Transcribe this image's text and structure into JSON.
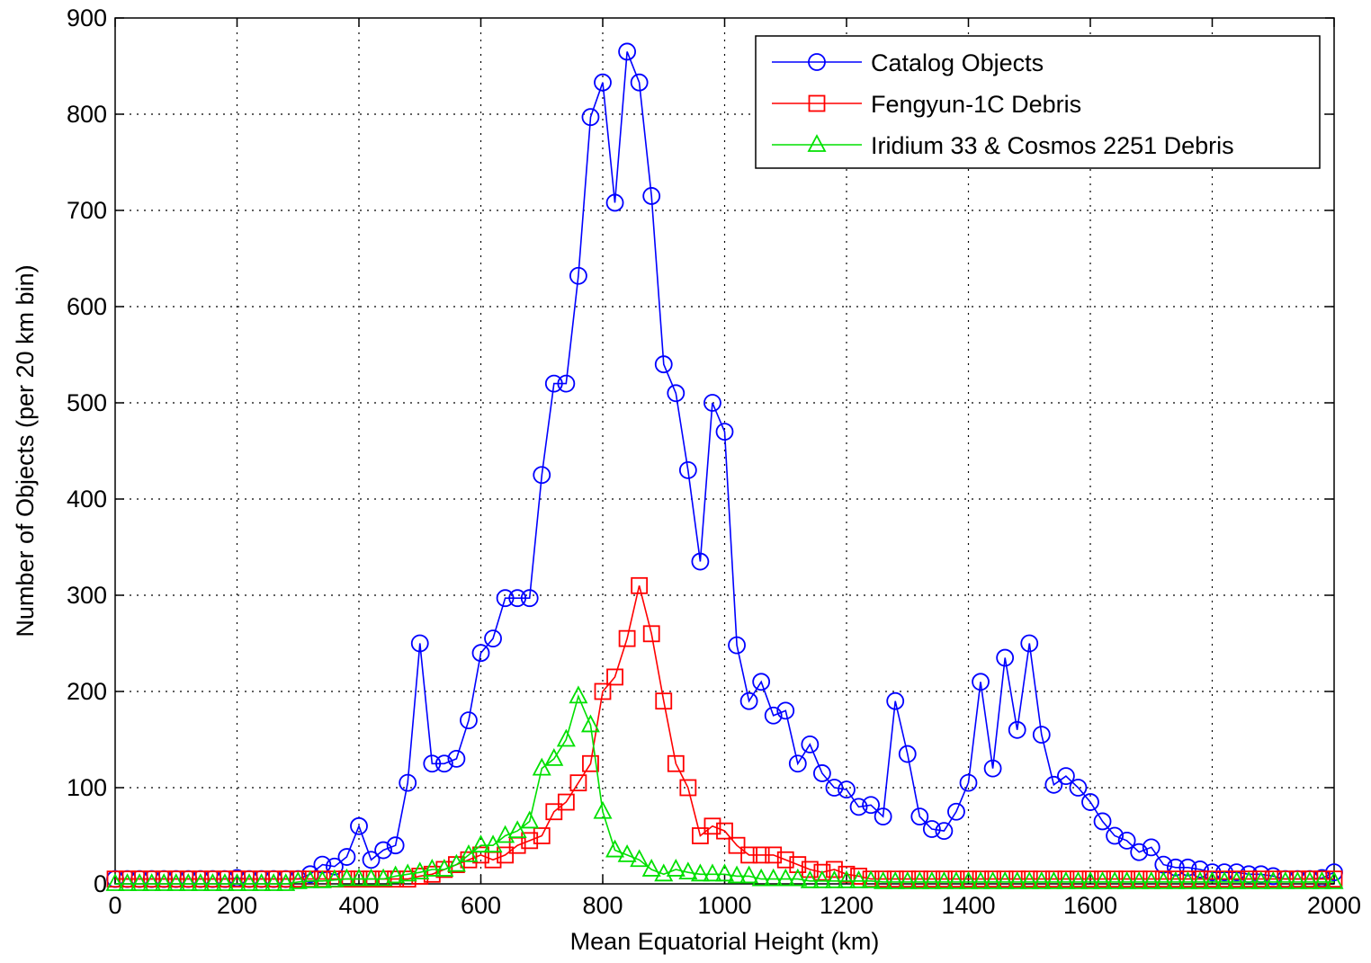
{
  "chart_data": {
    "type": "line",
    "title": "",
    "xlabel": "Mean Equatorial Height (km)",
    "ylabel": "Number of Objects (per 20 km bin)",
    "xlim": [
      0,
      2000
    ],
    "ylim": [
      0,
      900
    ],
    "xticks": [
      0,
      200,
      400,
      600,
      800,
      1000,
      1200,
      1400,
      1600,
      1800,
      2000
    ],
    "yticks": [
      0,
      100,
      200,
      300,
      400,
      500,
      600,
      700,
      800,
      900
    ],
    "grid": true,
    "grid_style": "dotted",
    "legend_position": "top-right",
    "series": [
      {
        "name": "Catalog Objects",
        "color": "#0000ff",
        "marker": "circle",
        "x": [
          0,
          20,
          40,
          60,
          80,
          100,
          120,
          140,
          160,
          180,
          200,
          220,
          240,
          260,
          280,
          300,
          320,
          340,
          360,
          380,
          400,
          420,
          440,
          460,
          480,
          500,
          520,
          540,
          560,
          580,
          600,
          620,
          640,
          660,
          680,
          700,
          720,
          740,
          760,
          780,
          800,
          820,
          840,
          860,
          880,
          900,
          920,
          940,
          960,
          980,
          1000,
          1020,
          1040,
          1060,
          1080,
          1100,
          1120,
          1140,
          1160,
          1180,
          1200,
          1220,
          1240,
          1260,
          1280,
          1300,
          1320,
          1340,
          1360,
          1380,
          1400,
          1420,
          1440,
          1460,
          1480,
          1500,
          1520,
          1540,
          1560,
          1580,
          1600,
          1620,
          1640,
          1660,
          1680,
          1700,
          1720,
          1740,
          1760,
          1780,
          1800,
          1820,
          1840,
          1860,
          1880,
          1900,
          1920,
          1940,
          1960,
          1980,
          2000
        ],
        "y": [
          5,
          5,
          5,
          5,
          5,
          5,
          5,
          5,
          5,
          5,
          6,
          5,
          5,
          5,
          5,
          5,
          10,
          20,
          18,
          28,
          60,
          25,
          35,
          40,
          105,
          250,
          125,
          125,
          130,
          170,
          240,
          255,
          297,
          297,
          297,
          425,
          520,
          520,
          632,
          797,
          833,
          708,
          865,
          833,
          715,
          540,
          510,
          430,
          335,
          500,
          470,
          248,
          190,
          210,
          175,
          180,
          125,
          145,
          115,
          100,
          98,
          80,
          82,
          70,
          190,
          135,
          70,
          57,
          55,
          75,
          105,
          210,
          120,
          235,
          160,
          250,
          155,
          103,
          112,
          100,
          85,
          65,
          50,
          45,
          33,
          38,
          20,
          17,
          17,
          15,
          12,
          12,
          12,
          10,
          10,
          8,
          5,
          5,
          5,
          6,
          12
        ]
      },
      {
        "name": "Fengyun-1C Debris",
        "color": "#ff0000",
        "marker": "square",
        "x": [
          0,
          20,
          40,
          60,
          80,
          100,
          120,
          140,
          160,
          180,
          200,
          220,
          240,
          260,
          280,
          300,
          320,
          340,
          360,
          380,
          400,
          420,
          440,
          460,
          480,
          500,
          520,
          540,
          560,
          580,
          600,
          620,
          640,
          660,
          680,
          700,
          720,
          740,
          760,
          780,
          800,
          820,
          840,
          860,
          880,
          900,
          920,
          940,
          960,
          980,
          1000,
          1020,
          1040,
          1060,
          1080,
          1100,
          1120,
          1140,
          1160,
          1180,
          1200,
          1220,
          1240,
          1260,
          1280,
          1300,
          1320,
          1340,
          1360,
          1380,
          1400,
          1420,
          1440,
          1460,
          1480,
          1500,
          1520,
          1540,
          1560,
          1580,
          1600,
          1620,
          1640,
          1660,
          1680,
          1700,
          1720,
          1740,
          1760,
          1780,
          1800,
          1820,
          1840,
          1860,
          1880,
          1900,
          1920,
          1940,
          1960,
          1980,
          2000
        ],
        "y": [
          5,
          5,
          5,
          5,
          5,
          5,
          5,
          5,
          5,
          5,
          5,
          5,
          5,
          5,
          5,
          5,
          5,
          5,
          5,
          5,
          5,
          5,
          5,
          5,
          5,
          8,
          10,
          15,
          20,
          25,
          30,
          25,
          30,
          40,
          45,
          50,
          75,
          85,
          105,
          125,
          200,
          215,
          255,
          310,
          260,
          190,
          125,
          100,
          50,
          60,
          55,
          40,
          30,
          30,
          30,
          25,
          20,
          15,
          12,
          15,
          10,
          8,
          5,
          5,
          5,
          5,
          5,
          5,
          5,
          5,
          5,
          5,
          5,
          5,
          5,
          5,
          5,
          5,
          5,
          5,
          5,
          5,
          5,
          5,
          5,
          5,
          5,
          5,
          5,
          5,
          5,
          5,
          5,
          5,
          5,
          5,
          5,
          5,
          5,
          5,
          5
        ]
      },
      {
        "name": "Iridium 33 & Cosmos 2251 Debris",
        "color": "#00e000",
        "marker": "triangle",
        "x": [
          0,
          20,
          40,
          60,
          80,
          100,
          120,
          140,
          160,
          180,
          200,
          220,
          240,
          260,
          280,
          300,
          320,
          340,
          360,
          380,
          400,
          420,
          440,
          460,
          480,
          500,
          520,
          540,
          560,
          580,
          600,
          620,
          640,
          660,
          680,
          700,
          720,
          740,
          760,
          780,
          800,
          820,
          840,
          860,
          880,
          900,
          920,
          940,
          960,
          980,
          1000,
          1020,
          1040,
          1060,
          1080,
          1100,
          1120,
          1140,
          1160,
          1180,
          1200,
          1220,
          1240,
          1260,
          1280,
          1300,
          1320,
          1340,
          1360,
          1380,
          1400,
          1420,
          1440,
          1460,
          1480,
          1500,
          1520,
          1540,
          1560,
          1580,
          1600,
          1620,
          1640,
          1660,
          1680,
          1700,
          1720,
          1740,
          1760,
          1780,
          1800,
          1820,
          1840,
          1860,
          1880,
          1900,
          1920,
          1940,
          1960,
          1980,
          2000
        ],
        "y": [
          0,
          0,
          0,
          0,
          0,
          0,
          0,
          0,
          0,
          0,
          0,
          0,
          0,
          0,
          0,
          2,
          3,
          3,
          4,
          5,
          5,
          5,
          5,
          8,
          10,
          12,
          15,
          15,
          20,
          30,
          40,
          40,
          50,
          55,
          65,
          120,
          130,
          150,
          195,
          165,
          75,
          35,
          30,
          25,
          15,
          10,
          15,
          12,
          10,
          10,
          10,
          8,
          8,
          5,
          5,
          5,
          5,
          3,
          3,
          3,
          3,
          3,
          3,
          2,
          2,
          2,
          2,
          2,
          2,
          2,
          2,
          2,
          2,
          2,
          2,
          2,
          2,
          2,
          2,
          2,
          2,
          2,
          2,
          2,
          2,
          2,
          2,
          2,
          2,
          2,
          2,
          2,
          2,
          2,
          2,
          2,
          2,
          2,
          2,
          2,
          2
        ]
      }
    ]
  }
}
